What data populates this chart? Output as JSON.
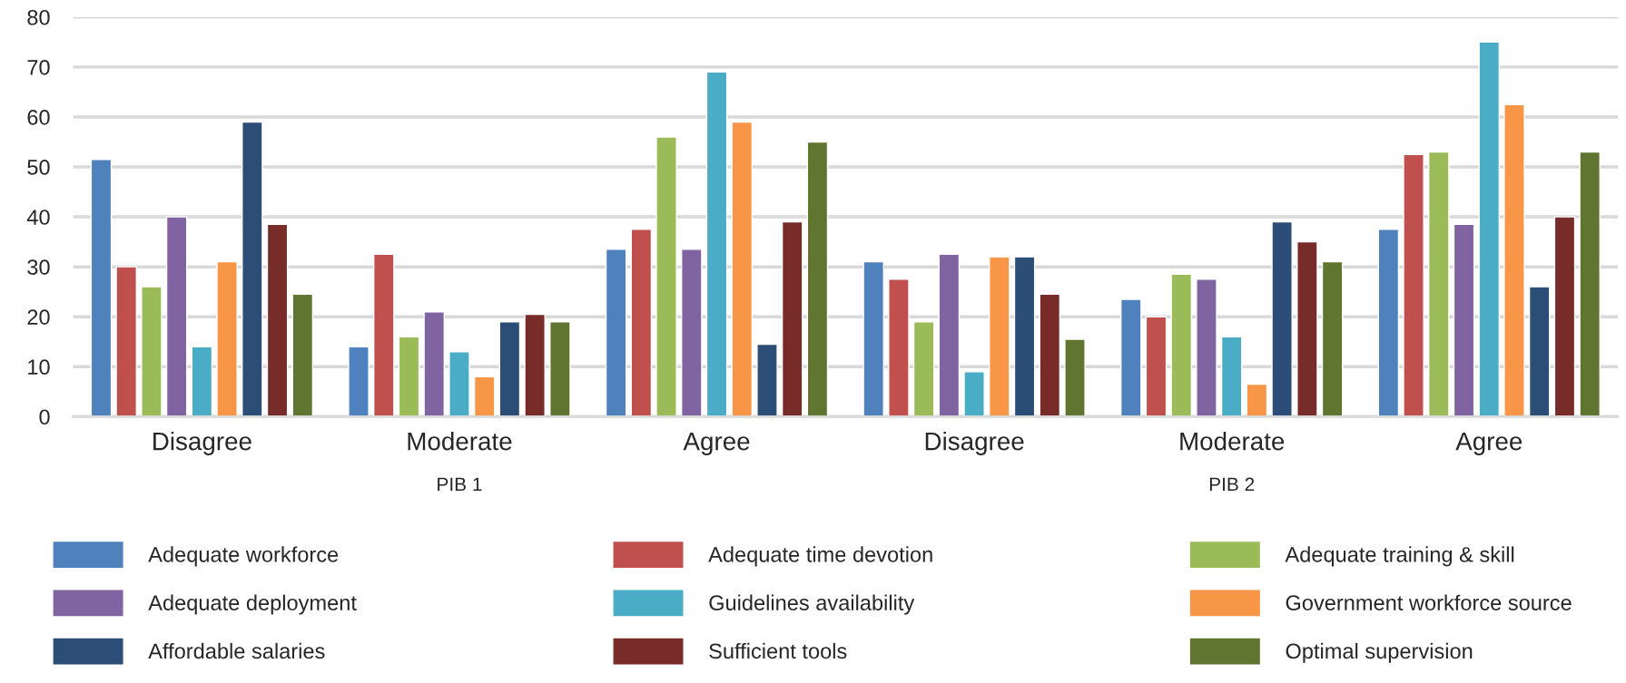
{
  "chart_data": {
    "type": "bar",
    "categories": [
      "Disagree",
      "Moderate",
      "Agree",
      "Disagree",
      "Moderate",
      "Agree"
    ],
    "series": [
      {
        "name": "Adequate workforce",
        "color": "#4f81bd",
        "values": [
          51.5,
          14,
          33.5,
          31,
          23.5,
          37.5
        ]
      },
      {
        "name": "Adequate time devotion",
        "color": "#c0504d",
        "values": [
          30,
          32.5,
          37.5,
          27.5,
          20,
          52.5
        ]
      },
      {
        "name": "Adequate training & skill",
        "color": "#9bbb59",
        "values": [
          26,
          16,
          56,
          19,
          28.5,
          53
        ]
      },
      {
        "name": "Adequate deployment",
        "color": "#8064a2",
        "values": [
          40,
          21,
          33.5,
          32.5,
          27.5,
          38.5
        ]
      },
      {
        "name": "Guidelines availability",
        "color": "#4bacc6",
        "values": [
          14,
          13,
          69,
          9,
          16,
          75
        ]
      },
      {
        "name": "Government workforce source",
        "color": "#f79646",
        "values": [
          31,
          8,
          59,
          32,
          6.5,
          62.5
        ]
      },
      {
        "name": "Affordable salaries",
        "color": "#2c4d75",
        "values": [
          59,
          19,
          14.5,
          32,
          39,
          26
        ]
      },
      {
        "name": "Sufficient tools",
        "color": "#772c2a",
        "values": [
          38.5,
          20.5,
          39,
          24.5,
          35,
          40
        ]
      },
      {
        "name": "Optimal supervision",
        "color": "#5f7530",
        "values": [
          24.5,
          19,
          55,
          15.5,
          31,
          53
        ]
      }
    ],
    "annotations": [
      "PIB 1",
      "PIB 2"
    ],
    "ylim": [
      0,
      80
    ],
    "yticks": [
      0,
      10,
      20,
      30,
      40,
      50,
      60,
      70,
      80
    ],
    "grid": "y",
    "legend": "bottom"
  }
}
